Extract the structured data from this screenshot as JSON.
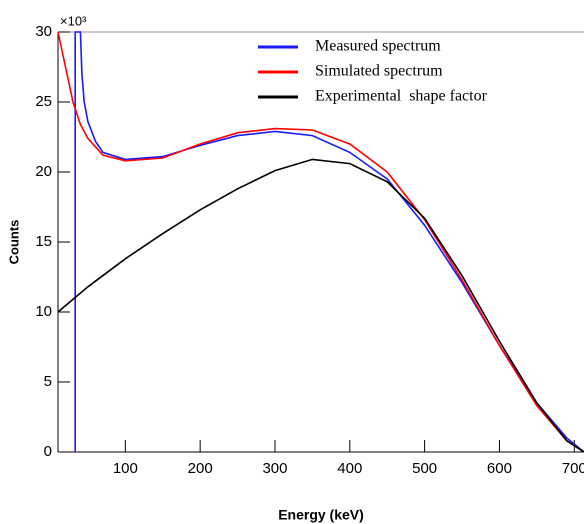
{
  "chart_data": {
    "type": "line",
    "x_label": "Energy (keV)",
    "y_label": "Counts",
    "y_multiplier": "×10³",
    "xlim": [
      10,
      713
    ],
    "ylim": [
      0,
      30
    ],
    "xticks": [
      100,
      200,
      300,
      400,
      500,
      600,
      700
    ],
    "yticks": [
      0,
      5,
      10,
      15,
      20,
      25,
      30
    ],
    "legend": "top-right",
    "series": [
      {
        "name": "Measured spectrum",
        "color": "#1a1aff",
        "x": [
          33,
          33,
          40,
          42,
          45,
          50,
          60,
          70,
          100,
          150,
          200,
          250,
          300,
          350,
          400,
          450,
          500,
          550,
          600,
          650,
          690,
          713
        ],
        "values": [
          0,
          30,
          30,
          27,
          25,
          23.6,
          22.2,
          21.4,
          20.9,
          21.1,
          21.9,
          22.6,
          22.9,
          22.6,
          21.4,
          19.5,
          16.2,
          12.1,
          7.6,
          3.5,
          1.0,
          0
        ]
      },
      {
        "name": "Simulated spectrum",
        "color": "#ff0000",
        "x": [
          10,
          20,
          30,
          40,
          50,
          70,
          100,
          150,
          200,
          250,
          300,
          350,
          400,
          450,
          500,
          550,
          600,
          650,
          690,
          713
        ],
        "values": [
          30,
          27.5,
          25,
          23.4,
          22.4,
          21.2,
          20.8,
          21,
          22,
          22.8,
          23.1,
          23,
          22,
          20,
          16.6,
          12.3,
          7.6,
          3.3,
          0.8,
          0
        ]
      },
      {
        "name": "Experimental  shape factor",
        "color": "#000000",
        "x": [
          10,
          50,
          100,
          150,
          200,
          250,
          300,
          350,
          400,
          450,
          500,
          550,
          600,
          650,
          690,
          713
        ],
        "values": [
          10,
          11.8,
          13.8,
          15.6,
          17.3,
          18.8,
          20.1,
          20.9,
          20.6,
          19.3,
          16.7,
          12.6,
          7.9,
          3.5,
          0.8,
          0
        ]
      }
    ]
  }
}
